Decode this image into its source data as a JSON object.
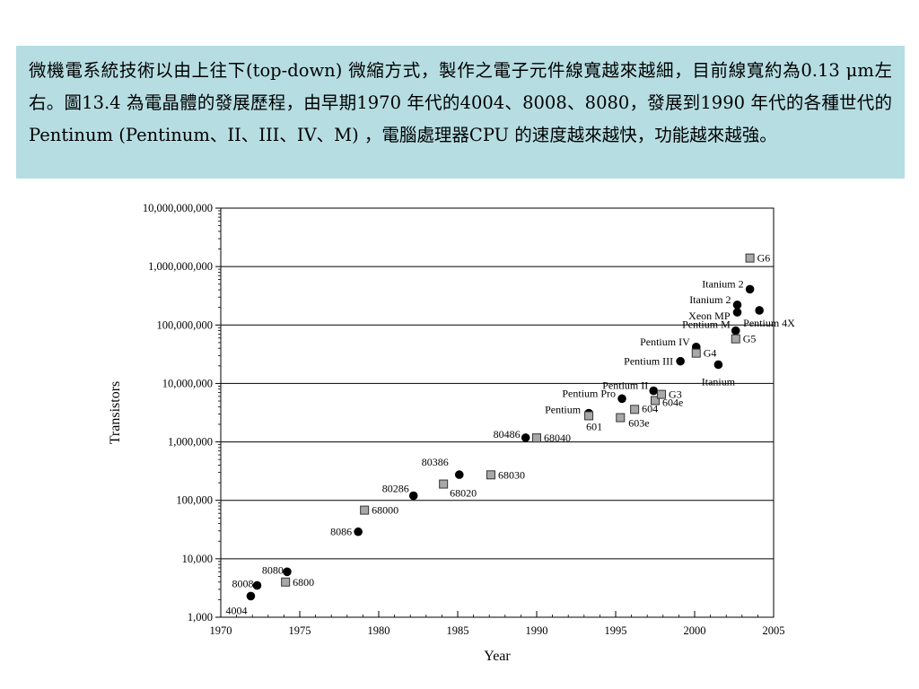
{
  "caption": "微機電系統技術以由上往下(top-down) 微縮方式，製作之電子元件線寬越來越細，目前線寬約為0.13 μm左右。圖13.4 為電晶體的發展歷程，由早期1970 年代的4004、8008、8080，發展到1990 年代的各種世代的Pentinum (Pentinum、II、III、IV、M) ，電腦處理器CPU 的速度越來越快，功能越來越強。",
  "colors": {
    "caption_bg": "#b6dde2",
    "square_fill": "#a8a8a8"
  },
  "chart_data": {
    "type": "scatter",
    "xlabel": "Year",
    "ylabel": "Transistors",
    "xlim": [
      1970,
      2005
    ],
    "ylim": [
      1000,
      10000000000
    ],
    "yscale": "log",
    "grid": "horizontal",
    "x_ticks": [
      "1970",
      "1975",
      "1980",
      "1985",
      "1990",
      "1995",
      "2000",
      "2005"
    ],
    "y_ticks": [
      "1,000",
      "10,000",
      "100,000",
      "1,000,000",
      "10,000,000",
      "100,000,000",
      "1,000,000,000",
      "10,000,000,000"
    ],
    "series": [
      {
        "marker": "circle",
        "points": [
          {
            "label": "4004",
            "x": 1971.9,
            "y": 2300
          },
          {
            "label": "8008",
            "x": 1972.3,
            "y": 3500
          },
          {
            "label": "8080",
            "x": 1974.2,
            "y": 6000
          },
          {
            "label": "8086",
            "x": 1978.7,
            "y": 29000
          },
          {
            "label": "80286",
            "x": 1982.2,
            "y": 120000
          },
          {
            "label": "80386",
            "x": 1985.1,
            "y": 275000
          },
          {
            "label": "80486",
            "x": 1989.3,
            "y": 1180000
          },
          {
            "label": "Pentium",
            "x": 1993.3,
            "y": 3100000
          },
          {
            "label": "Pentium Pro",
            "x": 1995.4,
            "y": 5500000
          },
          {
            "label": "Pentium II",
            "x": 1997.4,
            "y": 7500000
          },
          {
            "label": "Pentium III",
            "x": 1999.1,
            "y": 24000000
          },
          {
            "label": "Pentium IV",
            "x": 2000.1,
            "y": 42000000
          },
          {
            "label": "Itanium",
            "x": 2001.5,
            "y": 21000000
          },
          {
            "label": "Pentium M",
            "x": 2002.6,
            "y": 80000000
          },
          {
            "label": "Xeon MP",
            "x": 2002.7,
            "y": 165000000
          },
          {
            "label": "Itanium 2",
            "x": 2002.7,
            "y": 221000000
          },
          {
            "label": "Itanium 2",
            "x": 2003.5,
            "y": 410000000
          },
          {
            "label": "Pentium 4X",
            "x": 2004.1,
            "y": 178000000
          }
        ]
      },
      {
        "marker": "square",
        "points": [
          {
            "label": "6800",
            "x": 1974.1,
            "y": 4000
          },
          {
            "label": "68000",
            "x": 1979.1,
            "y": 68000
          },
          {
            "label": "68020",
            "x": 1984.1,
            "y": 190000
          },
          {
            "label": "68030",
            "x": 1987.1,
            "y": 273000
          },
          {
            "label": "68040",
            "x": 1990.0,
            "y": 1170000
          },
          {
            "label": "601",
            "x": 1993.3,
            "y": 2800000
          },
          {
            "label": "603e",
            "x": 1995.3,
            "y": 2600000
          },
          {
            "label": "604",
            "x": 1996.2,
            "y": 3600000
          },
          {
            "label": "604e",
            "x": 1997.5,
            "y": 5100000
          },
          {
            "label": "G3",
            "x": 1997.9,
            "y": 6500000
          },
          {
            "label": "G4",
            "x": 2000.1,
            "y": 33000000
          },
          {
            "label": "G5",
            "x": 2002.6,
            "y": 58000000
          },
          {
            "label": "G6",
            "x": 2003.5,
            "y": 1400000000
          }
        ]
      }
    ]
  }
}
